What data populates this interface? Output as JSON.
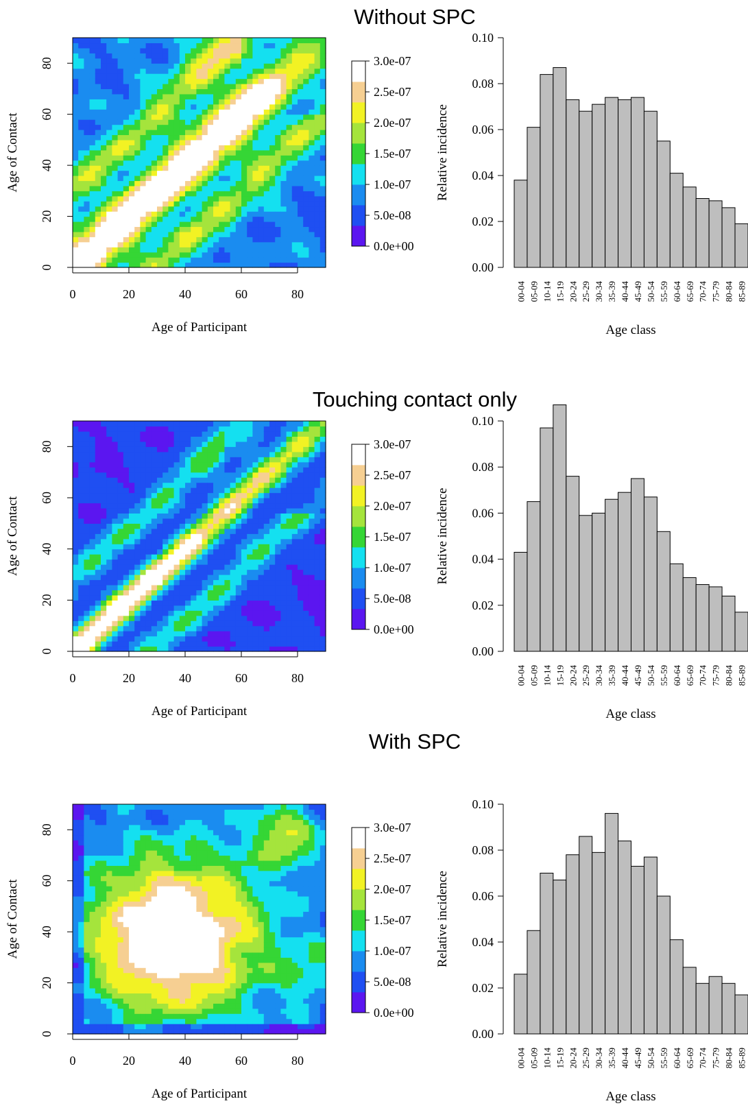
{
  "colormap": {
    "colors": [
      "#5b16f0",
      "#1f4ff2",
      "#1a8cf0",
      "#14e0f0",
      "#35d635",
      "#a5e43c",
      "#f2f224",
      "#f6cf92",
      "#ffffff"
    ]
  },
  "chart_data": [
    {
      "type": "heatmap",
      "panel": "Without SPC",
      "title": "Without SPC",
      "xlabel": "Age of Participant",
      "ylabel": "Age of Contact",
      "xlim": [
        0,
        90
      ],
      "ylim": [
        0,
        90
      ],
      "xticks": [
        "0",
        "20",
        "40",
        "60",
        "80"
      ],
      "yticks": [
        "0",
        "20",
        "40",
        "60",
        "80"
      ],
      "legend_labels": [
        "3.0e-07",
        "2.5e-07",
        "2.0e-07",
        "1.5e-07",
        "1.0e-07",
        "5.0e-08",
        "0.0e+00"
      ],
      "legend_range": [
        0,
        3e-07
      ],
      "pattern": "diagonal",
      "description": "High values concentrated along the diagonal (participant age ≈ contact age), strongest from 0 to about 60, with secondary off-diagonal bands about 30 years apart"
    },
    {
      "type": "bar",
      "panel": "Without SPC",
      "xlabel": "Age class",
      "ylabel": "Relative incidence",
      "ylim": [
        0,
        0.1
      ],
      "yticks": [
        "0.00",
        "0.02",
        "0.04",
        "0.06",
        "0.08",
        "0.10"
      ],
      "categories": [
        "00-04",
        "05-09",
        "10-14",
        "15-19",
        "20-24",
        "25-29",
        "30-34",
        "35-39",
        "40-44",
        "45-49",
        "50-54",
        "55-59",
        "60-64",
        "65-69",
        "70-74",
        "75-79",
        "80-84",
        "85-89"
      ],
      "values": [
        0.038,
        0.061,
        0.084,
        0.087,
        0.073,
        0.068,
        0.071,
        0.074,
        0.073,
        0.074,
        0.068,
        0.055,
        0.041,
        0.035,
        0.03,
        0.029,
        0.026,
        0.019
      ]
    },
    {
      "type": "heatmap",
      "panel": "Touching contact only",
      "title": "Touching contact only",
      "xlabel": "Age of Participant",
      "ylabel": "Age of Contact",
      "xlim": [
        0,
        90
      ],
      "ylim": [
        0,
        90
      ],
      "xticks": [
        "0",
        "20",
        "40",
        "60",
        "80"
      ],
      "yticks": [
        "0",
        "20",
        "40",
        "60",
        "80"
      ],
      "legend_labels": [
        "3.0e-07",
        "2.5e-07",
        "2.0e-07",
        "1.5e-07",
        "1.0e-07",
        "5.0e-08",
        "0.0e+00"
      ],
      "legend_range": [
        0,
        3e-07
      ],
      "pattern": "touching",
      "description": "Narrow high-value diagonal band, brightest for children (0 to about 30), with off-diagonal parent-child bands"
    },
    {
      "type": "bar",
      "panel": "Touching contact only",
      "xlabel": "Age class",
      "ylabel": "Relative incidence",
      "ylim": [
        0,
        0.1
      ],
      "yticks": [
        "0.00",
        "0.02",
        "0.04",
        "0.06",
        "0.08",
        "0.10"
      ],
      "categories": [
        "00-04",
        "05-09",
        "10-14",
        "15-19",
        "20-24",
        "25-29",
        "30-34",
        "35-39",
        "40-44",
        "45-49",
        "50-54",
        "55-59",
        "60-64",
        "65-69",
        "70-74",
        "75-79",
        "80-84",
        "85-89"
      ],
      "values": [
        0.043,
        0.065,
        0.097,
        0.107,
        0.076,
        0.059,
        0.06,
        0.066,
        0.069,
        0.075,
        0.067,
        0.052,
        0.038,
        0.032,
        0.029,
        0.028,
        0.024,
        0.017
      ]
    },
    {
      "type": "heatmap",
      "panel": "With SPC",
      "title": "With SPC",
      "xlabel": "Age of Participant",
      "ylabel": "Age of Contact",
      "xlim": [
        0,
        90
      ],
      "ylim": [
        0,
        90
      ],
      "xticks": [
        "0",
        "20",
        "40",
        "60",
        "80"
      ],
      "yticks": [
        "0",
        "20",
        "40",
        "60",
        "80"
      ],
      "legend_labels": [
        "3.0e-07",
        "2.5e-07",
        "2.0e-07",
        "1.5e-07",
        "1.0e-07",
        "5.0e-08",
        "0.0e+00"
      ],
      "legend_range": [
        0,
        3e-07
      ],
      "pattern": "spc",
      "description": "Large high-value blob covering participant and contact ages from about 5 to 65, with lower values near the edges"
    },
    {
      "type": "bar",
      "panel": "With SPC",
      "xlabel": "Age class",
      "ylabel": "Relative incidence",
      "ylim": [
        0,
        0.1
      ],
      "yticks": [
        "0.00",
        "0.02",
        "0.04",
        "0.06",
        "0.08",
        "0.10"
      ],
      "categories": [
        "00-04",
        "05-09",
        "10-14",
        "15-19",
        "20-24",
        "25-29",
        "30-34",
        "35-39",
        "40-44",
        "45-49",
        "50-54",
        "55-59",
        "60-64",
        "65-69",
        "70-74",
        "75-79",
        "80-84",
        "85-89"
      ],
      "values": [
        0.026,
        0.045,
        0.07,
        0.067,
        0.078,
        0.086,
        0.079,
        0.096,
        0.084,
        0.073,
        0.077,
        0.06,
        0.041,
        0.029,
        0.022,
        0.025,
        0.022,
        0.017
      ]
    }
  ]
}
